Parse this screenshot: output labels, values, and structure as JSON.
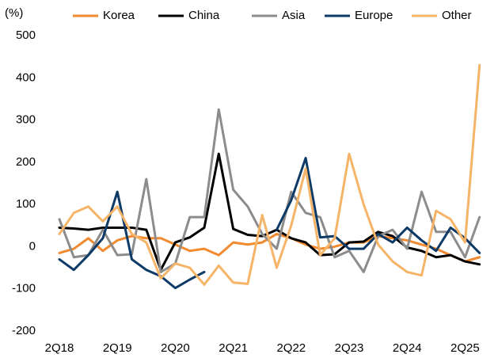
{
  "chart_data": {
    "type": "line",
    "y_label": "(%)",
    "categories": [
      "2Q18",
      null,
      null,
      null,
      "2Q19",
      null,
      null,
      null,
      "2Q20",
      null,
      null,
      null,
      "2Q21",
      null,
      null,
      null,
      "2Q22",
      null,
      null,
      null,
      "2Q23",
      null,
      null,
      null,
      "2Q24",
      null,
      null,
      null,
      "2Q25",
      null
    ],
    "series": [
      {
        "name": "Korea",
        "color": "#f28a30",
        "values": [
          -15,
          -5,
          20,
          -10,
          15,
          25,
          20,
          20,
          5,
          -10,
          -5,
          -20,
          10,
          5,
          10,
          30,
          20,
          5,
          -5,
          0,
          10,
          10,
          25,
          20,
          15,
          5,
          -5,
          -20,
          -35,
          -25
        ]
      },
      {
        "name": "China",
        "color": "#000000",
        "values": [
          45,
          43,
          40,
          45,
          45,
          45,
          40,
          -55,
          10,
          22,
          45,
          220,
          42,
          28,
          25,
          40,
          20,
          10,
          -20,
          -18,
          10,
          12,
          35,
          25,
          -2,
          -10,
          -25,
          -20,
          -35,
          -42
        ]
      },
      {
        "name": "Asia",
        "color": "#8c8c8c",
        "values": [
          65,
          -25,
          -20,
          40,
          -20,
          -18,
          160,
          -60,
          -40,
          70,
          70,
          325,
          135,
          95,
          30,
          -5,
          130,
          80,
          70,
          -25,
          -10,
          -60,
          25,
          40,
          -5,
          130,
          35,
          35,
          -25,
          70
        ]
      },
      {
        "name": "Europe",
        "color": "#0d3a66",
        "values": [
          -30,
          -55,
          -20,
          20,
          130,
          -30,
          -55,
          -70,
          -98,
          -78,
          -60,
          null,
          null,
          null,
          null,
          40,
          110,
          210,
          22,
          25,
          -5,
          -5,
          30,
          10,
          45,
          15,
          -10,
          45,
          20,
          -15
        ]
      },
      {
        "name": "Other",
        "color": "#f5b467",
        "values": [
          30,
          80,
          95,
          60,
          95,
          30,
          10,
          -75,
          -40,
          -50,
          -90,
          -45,
          -85,
          -88,
          75,
          -50,
          50,
          185,
          -20,
          20,
          220,
          100,
          5,
          -35,
          -60,
          -68,
          85,
          65,
          10,
          430
        ]
      }
    ],
    "ylim": [
      -200,
      500
    ],
    "yticks": [
      -200,
      -100,
      0,
      100,
      200,
      300,
      400,
      500
    ],
    "grid": false,
    "legend": "top"
  }
}
